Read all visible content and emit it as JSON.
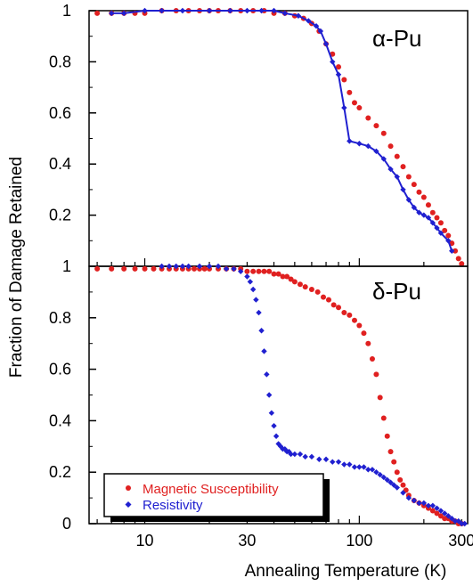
{
  "ylabel": "Fraction of Damage Retained",
  "xlabel": "Annealing Temperature (K)",
  "legend": {
    "position": "bottom-left",
    "entries": [
      {
        "label": "Magnetic Susceptibility",
        "color": "#e02020"
      },
      {
        "label": "Resistivity",
        "color": "#2020d0"
      }
    ]
  },
  "chart_data": [
    {
      "type": "scatter",
      "label": "α-Pu",
      "xscale": "log",
      "xlim": [
        5.5,
        320
      ],
      "ylim": [
        0,
        1
      ],
      "yticks": [
        0.2,
        0.4,
        0.6,
        0.8,
        1
      ],
      "ytick_labels": [
        "0.2",
        "0.4",
        "0.6",
        "0.8",
        "1"
      ],
      "series": [
        {
          "name": "Magnetic Susceptibility",
          "color": "#e02020",
          "style": "markers",
          "x": [
            6,
            7,
            8,
            9,
            10,
            12,
            14,
            16,
            18,
            20,
            22,
            25,
            28,
            32,
            36,
            40,
            45,
            50,
            55,
            60,
            65,
            70,
            75,
            80,
            85,
            90,
            95,
            100,
            110,
            120,
            130,
            140,
            150,
            160,
            170,
            180,
            190,
            200,
            210,
            220,
            230,
            240,
            250,
            260,
            270,
            280,
            290,
            300
          ],
          "y": [
            0.99,
            0.99,
            0.99,
            0.99,
            0.99,
            1.0,
            1.0,
            1.0,
            1.0,
            1.0,
            1.0,
            1.0,
            1.0,
            1.0,
            1.0,
            0.99,
            0.99,
            0.98,
            0.97,
            0.95,
            0.92,
            0.87,
            0.83,
            0.78,
            0.73,
            0.68,
            0.64,
            0.62,
            0.58,
            0.55,
            0.52,
            0.47,
            0.43,
            0.39,
            0.35,
            0.32,
            0.29,
            0.27,
            0.24,
            0.21,
            0.19,
            0.17,
            0.14,
            0.12,
            0.09,
            0.06,
            0.03,
            0.01
          ]
        },
        {
          "name": "Resistivity",
          "color": "#2020d0",
          "style": "line-markers",
          "x": [
            7,
            8,
            10,
            12,
            15,
            20,
            25,
            30,
            35,
            40,
            45,
            52,
            58,
            63,
            66,
            70,
            75,
            80,
            85,
            90,
            100,
            110,
            120,
            130,
            140,
            150,
            160,
            170,
            180,
            190,
            200,
            210,
            220,
            230,
            240,
            260,
            270
          ],
          "y": [
            0.99,
            0.99,
            1.0,
            1.0,
            1.0,
            1.0,
            1.0,
            1.0,
            1.0,
            1.0,
            0.99,
            0.98,
            0.96,
            0.94,
            0.92,
            0.87,
            0.8,
            0.75,
            0.62,
            0.49,
            0.48,
            0.47,
            0.45,
            0.42,
            0.38,
            0.35,
            0.3,
            0.26,
            0.23,
            0.21,
            0.2,
            0.19,
            0.17,
            0.15,
            0.13,
            0.1,
            0.06
          ]
        }
      ]
    },
    {
      "type": "scatter",
      "label": "δ-Pu",
      "xscale": "log",
      "xlim": [
        5.5,
        320
      ],
      "ylim": [
        0,
        1
      ],
      "xticks": [
        10,
        30,
        100,
        300
      ],
      "xtick_labels": [
        "10",
        "30",
        "100",
        "300"
      ],
      "yticks": [
        0,
        0.2,
        0.4,
        0.6,
        0.8,
        1
      ],
      "ytick_labels": [
        "0",
        "0.2",
        "0.4",
        "0.6",
        "0.8",
        "1"
      ],
      "series": [
        {
          "name": "Magnetic Susceptibility",
          "color": "#e02020",
          "style": "markers",
          "x": [
            6,
            7,
            8,
            9,
            10,
            11,
            12,
            13,
            14,
            15,
            16,
            17,
            18,
            19,
            20,
            22,
            24,
            26,
            28,
            30,
            32,
            34,
            36,
            38,
            40,
            42,
            44,
            46,
            48,
            50,
            53,
            56,
            60,
            64,
            68,
            72,
            76,
            80,
            85,
            90,
            95,
            100,
            105,
            110,
            115,
            120,
            125,
            130,
            135,
            140,
            145,
            150,
            155,
            160,
            165,
            170,
            180,
            190,
            200,
            210,
            220,
            230,
            240,
            250,
            260,
            270,
            280,
            290,
            300
          ],
          "y": [
            0.99,
            0.99,
            0.99,
            0.99,
            0.99,
            0.99,
            0.99,
            0.99,
            0.99,
            0.99,
            0.99,
            0.99,
            0.99,
            0.99,
            0.99,
            0.99,
            0.99,
            0.99,
            0.99,
            0.98,
            0.98,
            0.98,
            0.98,
            0.98,
            0.97,
            0.97,
            0.96,
            0.96,
            0.95,
            0.94,
            0.93,
            0.92,
            0.91,
            0.9,
            0.88,
            0.87,
            0.85,
            0.84,
            0.82,
            0.81,
            0.79,
            0.77,
            0.74,
            0.7,
            0.64,
            0.58,
            0.49,
            0.41,
            0.34,
            0.28,
            0.24,
            0.2,
            0.17,
            0.15,
            0.13,
            0.11,
            0.09,
            0.08,
            0.07,
            0.06,
            0.05,
            0.04,
            0.03,
            0.02,
            0.02,
            0.01,
            0.01,
            0.0,
            0.0
          ]
        },
        {
          "name": "Resistivity",
          "color": "#2020d0",
          "style": "markers",
          "x": [
            12,
            13,
            14,
            15,
            16,
            18,
            20,
            22,
            24,
            26,
            28,
            30,
            31,
            32,
            33,
            34,
            35,
            36,
            37,
            38,
            39,
            40,
            41,
            42,
            43,
            44,
            45,
            46,
            47,
            48,
            50,
            53,
            56,
            60,
            65,
            70,
            75,
            80,
            85,
            90,
            95,
            100,
            105,
            110,
            115,
            120,
            125,
            130,
            135,
            140,
            145,
            150,
            160,
            170,
            180,
            190,
            200,
            210,
            220,
            230,
            240,
            250,
            260,
            270,
            280,
            290,
            300,
            310
          ],
          "y": [
            1.0,
            1.0,
            1.0,
            1.0,
            1.0,
            1.0,
            1.0,
            1.0,
            0.99,
            0.99,
            0.98,
            0.96,
            0.94,
            0.91,
            0.87,
            0.82,
            0.75,
            0.67,
            0.58,
            0.5,
            0.43,
            0.38,
            0.34,
            0.31,
            0.3,
            0.29,
            0.29,
            0.28,
            0.28,
            0.27,
            0.27,
            0.27,
            0.26,
            0.26,
            0.25,
            0.25,
            0.24,
            0.24,
            0.23,
            0.23,
            0.22,
            0.22,
            0.22,
            0.21,
            0.21,
            0.2,
            0.19,
            0.18,
            0.17,
            0.16,
            0.15,
            0.14,
            0.12,
            0.1,
            0.09,
            0.08,
            0.08,
            0.07,
            0.07,
            0.06,
            0.05,
            0.04,
            0.03,
            0.02,
            0.01,
            0.01,
            0.0,
            0.0
          ]
        }
      ]
    }
  ]
}
